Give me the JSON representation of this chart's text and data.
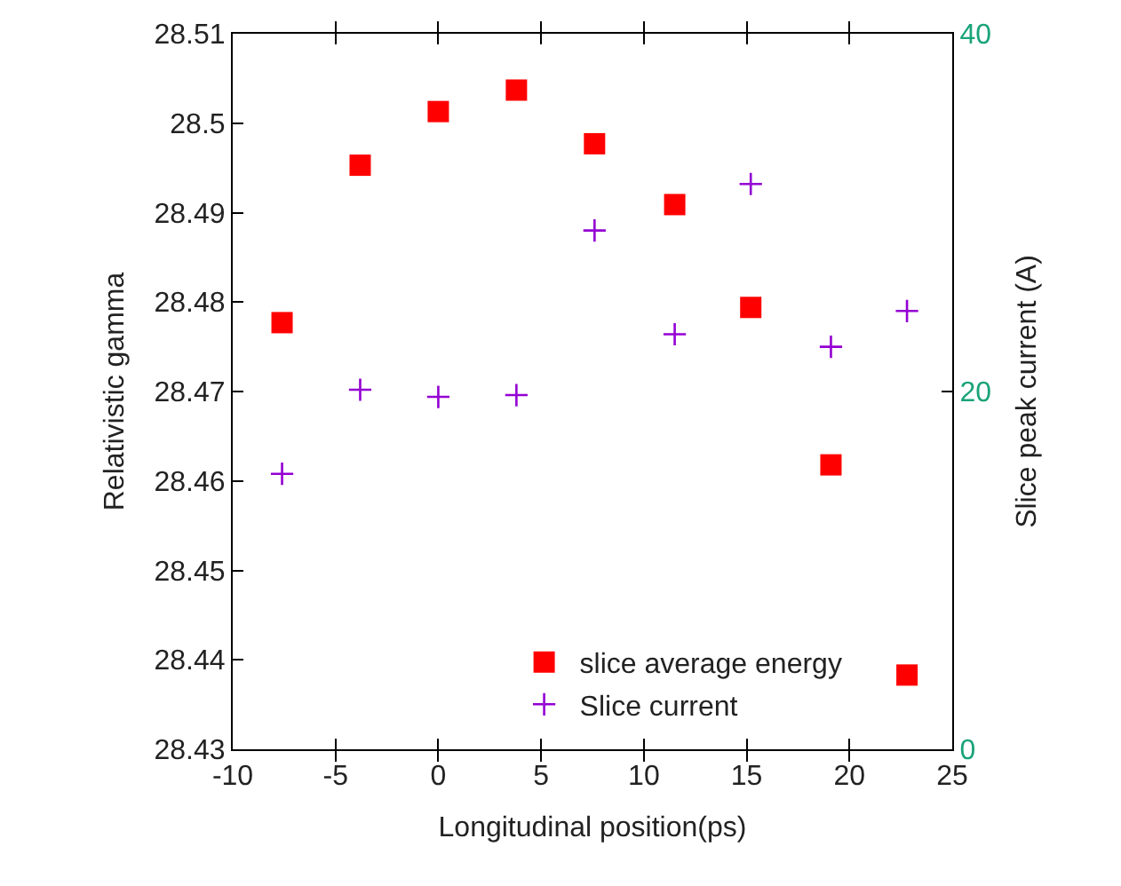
{
  "chart_data": {
    "type": "scatter",
    "xlabel": "Longitudinal position(ps)",
    "ylabel": "Relativistic gamma",
    "y2label": "Slice peak current (A)",
    "xlim": [
      -10,
      25
    ],
    "xticks": [
      -10,
      -5,
      0,
      5,
      10,
      15,
      20,
      25
    ],
    "ylim": [
      28.43,
      28.51
    ],
    "yticks": [
      28.43,
      28.44,
      28.45,
      28.46,
      28.47,
      28.48,
      28.49,
      28.5,
      28.51
    ],
    "y2lim": [
      0,
      40
    ],
    "y2ticks": [
      0,
      20,
      40
    ],
    "legend": "bottom right",
    "series": [
      {
        "name": "slice average energy",
        "color": "#ff0000",
        "marker": "square",
        "x": [
          -7.6,
          -3.8,
          0,
          3.8,
          7.6,
          11.5,
          15.2,
          19.1,
          22.8
        ],
        "values": [
          28.4777,
          28.4953,
          28.5013,
          28.5037,
          28.4977,
          28.4909,
          28.4794,
          28.4618,
          28.4383
        ]
      },
      {
        "name": "Slice current",
        "color": "#9400d3",
        "marker": "cross",
        "axis": "y2",
        "x": [
          -7.6,
          -3.8,
          0,
          3.8,
          7.6,
          11.5,
          15.2,
          19.1,
          22.8
        ],
        "values": [
          15.4,
          20.1,
          19.7,
          19.8,
          29.0,
          23.2,
          31.6,
          22.5,
          24.5
        ]
      }
    ]
  }
}
